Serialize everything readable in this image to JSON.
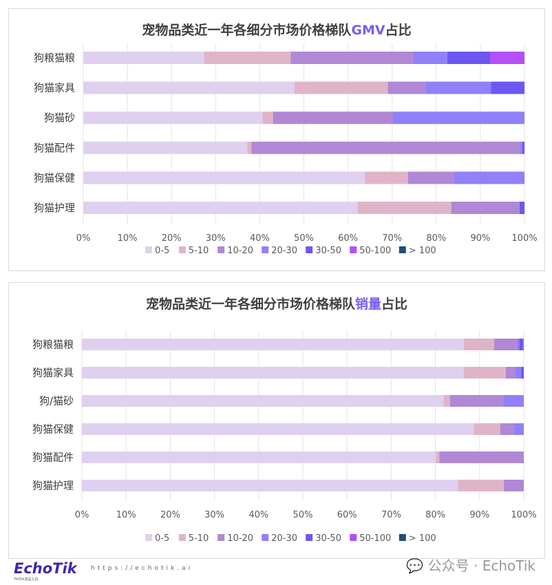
{
  "colors": {
    "0-5": "#dfd0ef",
    "5-10": "#e0b4c8",
    "10-20": "#b088d6",
    "20-30": "#9080fa",
    "30-50": "#6b58f2",
    "50-100": "#b44ffa",
    "> 100": "#1f4e79"
  },
  "chart_data": [
    {
      "type": "bar",
      "orientation": "horizontal",
      "stacked": "100%",
      "title_prefix": "宠物品类近一年各细分市场价格梯队",
      "title_highlight": "GMV",
      "title_suffix": "占比",
      "categories": [
        "狗粮猫粮",
        "狗猫家具",
        "狗猫砂",
        "狗猫配件",
        "狗猫保健",
        "狗猫护理"
      ],
      "xticks": [
        "0%",
        "10%",
        "20%",
        "30%",
        "40%",
        "50%",
        "60%",
        "70%",
        "80%",
        "90%",
        "100%"
      ],
      "xlim": [
        0,
        100
      ],
      "grid": true,
      "legend": "bottom",
      "series": [
        {
          "name": "0-5",
          "values": [
            27.4,
            47.9,
            40.6,
            37.2,
            63.8,
            62.2
          ]
        },
        {
          "name": "5-10",
          "values": [
            19.6,
            21.1,
            2.4,
            0.9,
            9.8,
            21.2
          ]
        },
        {
          "name": "10-20",
          "values": [
            27.7,
            8.6,
            27.2,
            60.9,
            10.5,
            15.5
          ]
        },
        {
          "name": "20-30",
          "values": [
            7.8,
            14.8,
            29.8,
            0.5,
            15.9,
            0
          ]
        },
        {
          "name": "30-50",
          "values": [
            9.7,
            7.6,
            0,
            0.5,
            0,
            1.1
          ]
        },
        {
          "name": "50-100",
          "values": [
            7.8,
            0,
            0,
            0,
            0,
            0
          ]
        },
        {
          "name": "> 100",
          "values": [
            0,
            0,
            0,
            0,
            0,
            0
          ]
        }
      ]
    },
    {
      "type": "bar",
      "orientation": "horizontal",
      "stacked": "100%",
      "title_prefix": "宠物品类近一年各细分市场价格梯队",
      "title_highlight": "销量",
      "title_suffix": "占比",
      "categories": [
        "狗粮猫粮",
        "狗猫家具",
        "狗/猫砂",
        "狗猫保健",
        "狗猫配件",
        "狗猫护理"
      ],
      "xticks": [
        "0%",
        "10%",
        "20%",
        "30%",
        "40%",
        "50%",
        "60%",
        "70%",
        "80%",
        "90%",
        "100%"
      ],
      "xlim": [
        0,
        100
      ],
      "grid": true,
      "legend": "bottom",
      "series": [
        {
          "name": "0-5",
          "values": [
            86.4,
            86.4,
            81.8,
            88.7,
            80.1,
            85.1
          ]
        },
        {
          "name": "5-10",
          "values": [
            6.9,
            9.5,
            1.5,
            6.0,
            0.8,
            10.4
          ]
        },
        {
          "name": "10-20",
          "values": [
            5.1,
            2.1,
            12.0,
            3.0,
            19.1,
            4.5
          ]
        },
        {
          "name": "20-30",
          "values": [
            0.6,
            1.4,
            4.7,
            2.3,
            0,
            0
          ]
        },
        {
          "name": "30-50",
          "values": [
            0.8,
            0.6,
            0,
            0,
            0,
            0
          ]
        },
        {
          "name": "50-100",
          "values": [
            0.2,
            0,
            0,
            0,
            0,
            0
          ]
        },
        {
          "name": "> 100",
          "values": [
            0,
            0,
            0,
            0,
            0,
            0
          ]
        }
      ]
    }
  ],
  "footer": {
    "logo": "EchoTik",
    "logo_sub": "TikTok选品工具",
    "url": "https://echotik.ai",
    "watermark": "公众号 · EchoTik"
  }
}
